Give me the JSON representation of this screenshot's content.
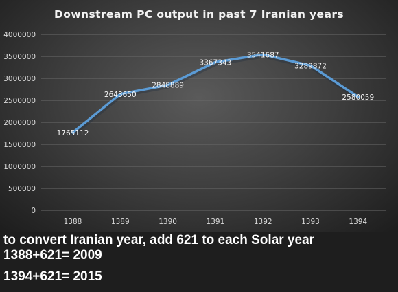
{
  "chart_data": {
    "type": "line",
    "title": "Downstream PC output in past 7 Iranian years",
    "categories": [
      "1388",
      "1389",
      "1390",
      "1391",
      "1392",
      "1393",
      "1394"
    ],
    "values": [
      1765112,
      2643650,
      2848889,
      3367343,
      3541687,
      3289872,
      2580059
    ],
    "data_labels": [
      "1765112",
      "2643650",
      "2848889",
      "3367343",
      "3541687",
      "3289872",
      "2580059"
    ],
    "ylim": [
      0,
      4000000
    ],
    "yticks": [
      "0",
      "500000",
      "1000000",
      "1500000",
      "2000000",
      "2500000",
      "3000000",
      "3500000",
      "4000000"
    ],
    "grid": true,
    "line_color": "#5b9bd5",
    "xlabel": "",
    "ylabel": ""
  },
  "notes": [
    "to convert Iranian year, add 621 to each Solar year",
    "1388+621= 2009",
    "1394+621= 2015"
  ]
}
